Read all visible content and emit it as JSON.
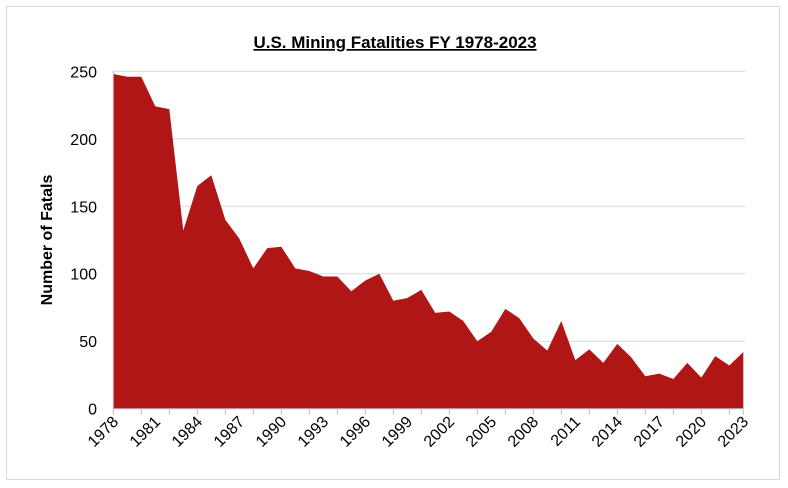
{
  "chart_data": {
    "type": "area",
    "title": "U.S. Mining Fatalities FY 1978-2023",
    "xlabel": "",
    "ylabel": "Number of Fatals",
    "ylim": [
      0,
      250
    ],
    "yticks": [
      0,
      50,
      100,
      150,
      200,
      250
    ],
    "xtick_labels": [
      "1978",
      "1981",
      "1984",
      "1987",
      "1990",
      "1993",
      "1996",
      "1999",
      "2002",
      "2005",
      "2008",
      "2011",
      "2014",
      "2017",
      "2020",
      "2023"
    ],
    "grid": true,
    "fill_color": "#b01615",
    "x": [
      1978,
      1979,
      1980,
      1981,
      1982,
      1983,
      1984,
      1985,
      1986,
      1987,
      1988,
      1989,
      1990,
      1991,
      1992,
      1993,
      1994,
      1995,
      1996,
      1997,
      1998,
      1999,
      2000,
      2001,
      2002,
      2003,
      2004,
      2005,
      2006,
      2007,
      2008,
      2009,
      2010,
      2011,
      2012,
      2013,
      2014,
      2015,
      2016,
      2017,
      2018,
      2019,
      2020,
      2021,
      2022,
      2023
    ],
    "values": [
      248,
      246,
      246,
      224,
      222,
      132,
      165,
      173,
      140,
      126,
      104,
      119,
      120,
      104,
      102,
      98,
      98,
      87,
      95,
      100,
      80,
      82,
      88,
      71,
      72,
      65,
      50,
      57,
      74,
      67,
      52,
      43,
      65,
      36,
      44,
      34,
      48,
      38,
      24,
      26,
      22,
      34,
      23,
      39,
      32,
      42
    ]
  }
}
